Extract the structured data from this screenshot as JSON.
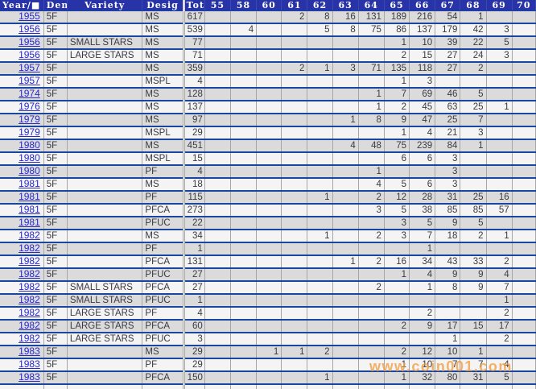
{
  "table": {
    "columns": [
      "Year/■",
      "Den",
      "Variety",
      "Desig",
      "Tot",
      "55",
      "58",
      "60",
      "61",
      "62",
      "63",
      "64",
      "65",
      "66",
      "67",
      "68",
      "69",
      "70"
    ],
    "grade_keys": [
      "55",
      "58",
      "60",
      "61",
      "62",
      "63",
      "64",
      "65",
      "66",
      "67",
      "68",
      "69",
      "70"
    ],
    "rows": [
      {
        "year": "1955",
        "den": "5F",
        "variety": "",
        "desig": "MS",
        "tot": "617",
        "grades": [
          "",
          "",
          "",
          "2",
          "8",
          "16",
          "131",
          "189",
          "216",
          "54",
          "1",
          "",
          ""
        ]
      },
      {
        "year": "1956",
        "den": "5F",
        "variety": "",
        "desig": "MS",
        "tot": "539",
        "grades": [
          "",
          "4",
          "",
          "",
          "5",
          "8",
          "75",
          "86",
          "137",
          "179",
          "42",
          "3",
          ""
        ]
      },
      {
        "year": "1956",
        "den": "5F",
        "variety": "SMALL STARS",
        "desig": "MS",
        "tot": "77",
        "grades": [
          "",
          "",
          "",
          "",
          "",
          "",
          "",
          "1",
          "10",
          "39",
          "22",
          "5",
          ""
        ]
      },
      {
        "year": "1956",
        "den": "5F",
        "variety": "LARGE STARS",
        "desig": "MS",
        "tot": "71",
        "grades": [
          "",
          "",
          "",
          "",
          "",
          "",
          "",
          "2",
          "15",
          "27",
          "24",
          "3",
          ""
        ]
      },
      {
        "year": "1957",
        "den": "5F",
        "variety": "",
        "desig": "MS",
        "tot": "359",
        "grades": [
          "",
          "",
          "",
          "2",
          "1",
          "3",
          "71",
          "135",
          "118",
          "27",
          "2",
          "",
          ""
        ]
      },
      {
        "year": "1957",
        "den": "5F",
        "variety": "",
        "desig": "MSPL",
        "tot": "4",
        "grades": [
          "",
          "",
          "",
          "",
          "",
          "",
          "",
          "1",
          "3",
          "",
          "",
          "",
          ""
        ]
      },
      {
        "year": "1974",
        "den": "5F",
        "variety": "",
        "desig": "MS",
        "tot": "128",
        "grades": [
          "",
          "",
          "",
          "",
          "",
          "",
          "1",
          "7",
          "69",
          "46",
          "5",
          "",
          ""
        ]
      },
      {
        "year": "1976",
        "den": "5F",
        "variety": "",
        "desig": "MS",
        "tot": "137",
        "grades": [
          "",
          "",
          "",
          "",
          "",
          "",
          "1",
          "2",
          "45",
          "63",
          "25",
          "1",
          ""
        ]
      },
      {
        "year": "1979",
        "den": "5F",
        "variety": "",
        "desig": "MS",
        "tot": "97",
        "grades": [
          "",
          "",
          "",
          "",
          "",
          "1",
          "8",
          "9",
          "47",
          "25",
          "7",
          "",
          ""
        ]
      },
      {
        "year": "1979",
        "den": "5F",
        "variety": "",
        "desig": "MSPL",
        "tot": "29",
        "grades": [
          "",
          "",
          "",
          "",
          "",
          "",
          "",
          "1",
          "4",
          "21",
          "3",
          "",
          ""
        ]
      },
      {
        "year": "1980",
        "den": "5F",
        "variety": "",
        "desig": "MS",
        "tot": "451",
        "grades": [
          "",
          "",
          "",
          "",
          "",
          "4",
          "48",
          "75",
          "239",
          "84",
          "1",
          "",
          ""
        ]
      },
      {
        "year": "1980",
        "den": "5F",
        "variety": "",
        "desig": "MSPL",
        "tot": "15",
        "grades": [
          "",
          "",
          "",
          "",
          "",
          "",
          "",
          "6",
          "6",
          "3",
          "",
          "",
          ""
        ]
      },
      {
        "year": "1980",
        "den": "5F",
        "variety": "",
        "desig": "PF",
        "tot": "4",
        "grades": [
          "",
          "",
          "",
          "",
          "",
          "",
          "1",
          "",
          "",
          "3",
          "",
          "",
          ""
        ]
      },
      {
        "year": "1981",
        "den": "5F",
        "variety": "",
        "desig": "MS",
        "tot": "18",
        "grades": [
          "",
          "",
          "",
          "",
          "",
          "",
          "4",
          "5",
          "6",
          "3",
          "",
          "",
          ""
        ]
      },
      {
        "year": "1981",
        "den": "5F",
        "variety": "",
        "desig": "PF",
        "tot": "115",
        "grades": [
          "",
          "",
          "",
          "",
          "1",
          "",
          "2",
          "12",
          "28",
          "31",
          "25",
          "16",
          ""
        ]
      },
      {
        "year": "1981",
        "den": "5F",
        "variety": "",
        "desig": "PFCA",
        "tot": "273",
        "grades": [
          "",
          "",
          "",
          "",
          "",
          "",
          "3",
          "5",
          "38",
          "85",
          "85",
          "57",
          ""
        ]
      },
      {
        "year": "1981",
        "den": "5F",
        "variety": "",
        "desig": "PFUC",
        "tot": "22",
        "grades": [
          "",
          "",
          "",
          "",
          "",
          "",
          "",
          "3",
          "5",
          "9",
          "5",
          "",
          ""
        ]
      },
      {
        "year": "1982",
        "den": "5F",
        "variety": "",
        "desig": "MS",
        "tot": "34",
        "grades": [
          "",
          "",
          "",
          "",
          "1",
          "",
          "2",
          "3",
          "7",
          "18",
          "2",
          "1",
          ""
        ]
      },
      {
        "year": "1982",
        "den": "5F",
        "variety": "",
        "desig": "PF",
        "tot": "1",
        "grades": [
          "",
          "",
          "",
          "",
          "",
          "",
          "",
          "",
          "1",
          "",
          "",
          "",
          ""
        ]
      },
      {
        "year": "1982",
        "den": "5F",
        "variety": "",
        "desig": "PFCA",
        "tot": "131",
        "grades": [
          "",
          "",
          "",
          "",
          "",
          "1",
          "2",
          "16",
          "34",
          "43",
          "33",
          "2",
          ""
        ]
      },
      {
        "year": "1982",
        "den": "5F",
        "variety": "",
        "desig": "PFUC",
        "tot": "27",
        "grades": [
          "",
          "",
          "",
          "",
          "",
          "",
          "",
          "1",
          "4",
          "9",
          "9",
          "4",
          ""
        ]
      },
      {
        "year": "1982",
        "den": "5F",
        "variety": "SMALL STARS",
        "desig": "PFCA",
        "tot": "27",
        "grades": [
          "",
          "",
          "",
          "",
          "",
          "",
          "2",
          "",
          "1",
          "8",
          "9",
          "7",
          ""
        ]
      },
      {
        "year": "1982",
        "den": "5F",
        "variety": "SMALL STARS",
        "desig": "PFUC",
        "tot": "1",
        "grades": [
          "",
          "",
          "",
          "",
          "",
          "",
          "",
          "",
          "",
          "",
          "",
          "1",
          ""
        ]
      },
      {
        "year": "1982",
        "den": "5F",
        "variety": "LARGE STARS",
        "desig": "PF",
        "tot": "4",
        "grades": [
          "",
          "",
          "",
          "",
          "",
          "",
          "",
          "",
          "2",
          "",
          "",
          "2",
          ""
        ]
      },
      {
        "year": "1982",
        "den": "5F",
        "variety": "LARGE STARS",
        "desig": "PFCA",
        "tot": "60",
        "grades": [
          "",
          "",
          "",
          "",
          "",
          "",
          "",
          "2",
          "9",
          "17",
          "15",
          "17",
          ""
        ]
      },
      {
        "year": "1982",
        "den": "5F",
        "variety": "LARGE STARS",
        "desig": "PFUC",
        "tot": "3",
        "grades": [
          "",
          "",
          "",
          "",
          "",
          "",
          "",
          "",
          "",
          "1",
          "",
          "2",
          ""
        ]
      },
      {
        "year": "1983",
        "den": "5F",
        "variety": "",
        "desig": "MS",
        "tot": "29",
        "grades": [
          "",
          "",
          "1",
          "1",
          "2",
          "",
          "",
          "2",
          "12",
          "10",
          "1",
          "",
          ""
        ]
      },
      {
        "year": "1983",
        "den": "5F",
        "variety": "",
        "desig": "PF",
        "tot": "29",
        "grades": [
          "",
          "",
          "",
          "",
          "",
          "",
          "",
          "1",
          "10",
          "7",
          "7",
          "4",
          ""
        ]
      },
      {
        "year": "1983",
        "den": "5F",
        "variety": "",
        "desig": "PFCA",
        "tot": "150",
        "grades": [
          "",
          "",
          "",
          "",
          "1",
          "",
          "",
          "1",
          "32",
          "80",
          "31",
          "5",
          ""
        ]
      },
      {
        "year": "",
        "den": "",
        "variety": "",
        "desig": "",
        "tot": "",
        "grades": [
          "",
          "",
          "",
          "",
          "",
          "",
          "",
          "",
          "",
          "",
          "",
          "",
          ""
        ]
      }
    ]
  },
  "watermark": {
    "text": "www.coin001.com"
  },
  "colors": {
    "header_bg": "#2733A6",
    "row_separator_blue": "#1A46A0",
    "stripe_gray": "#DBDBDB",
    "stripe_light": "#F4F4F4",
    "cell_border_gray": "#A6A6A6",
    "year_link_blue": "#2A2ACC",
    "watermark_orange": "#F29A38"
  }
}
